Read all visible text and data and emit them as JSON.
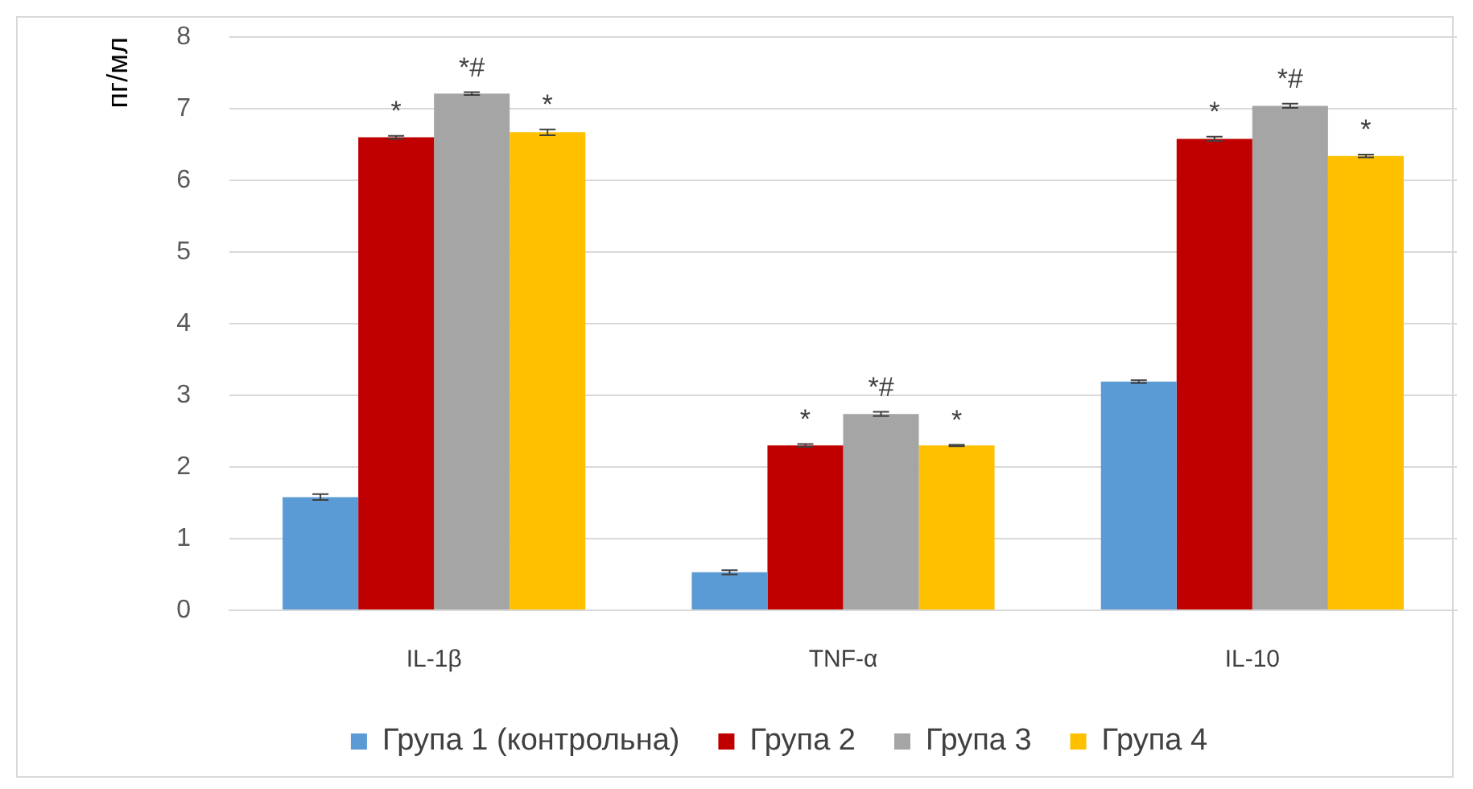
{
  "chart_data": {
    "type": "bar",
    "ylabel": "пг/мл",
    "categories": [
      "IL-1β",
      "TNF-α",
      "IL-10"
    ],
    "series": [
      {
        "name": "Група 1 (контрольна)",
        "color": "#5b9bd5",
        "values": [
          1.58,
          0.53,
          3.19
        ],
        "errors": [
          0.04,
          0.03,
          0.02
        ]
      },
      {
        "name": "Група 2",
        "color": "#c00000",
        "values": [
          6.6,
          2.3,
          6.58
        ],
        "errors": [
          0.02,
          0.02,
          0.03
        ],
        "value_labels": [
          "*",
          "*",
          "*"
        ]
      },
      {
        "name": "Група 3",
        "color": "#a5a5a5",
        "values": [
          7.21,
          2.74,
          7.04
        ],
        "errors": [
          0.02,
          0.03,
          0.03
        ],
        "value_labels": [
          "*#",
          "*#",
          "*#"
        ]
      },
      {
        "name": "Група 4",
        "color": "#ffc000",
        "values": [
          6.67,
          2.3,
          6.34
        ],
        "errors": [
          0.04,
          0.01,
          0.02
        ],
        "value_labels": [
          "*",
          "*",
          "*"
        ]
      }
    ],
    "ylim": [
      0,
      8
    ],
    "yticks": [
      0,
      1,
      2,
      3,
      4,
      5,
      6,
      7,
      8
    ],
    "grid": "y",
    "legend": "bottom"
  }
}
